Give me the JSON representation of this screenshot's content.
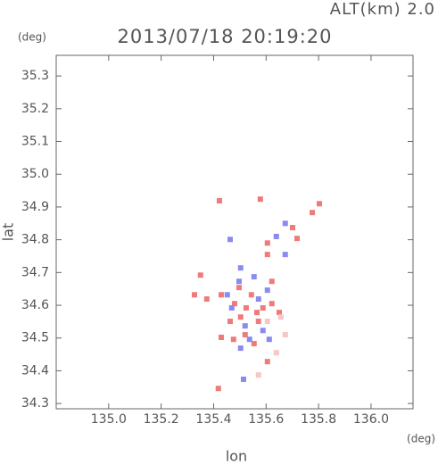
{
  "chart_data": {
    "type": "scatter",
    "title": "2013/07/18 20:19:20",
    "subtitle": "ALT(km) 2.0",
    "x_label": "lon",
    "x_unit": "(deg)",
    "y_label": "lat",
    "y_unit": "(deg)",
    "xlim": [
      134.8,
      136.16
    ],
    "ylim": [
      34.284,
      35.363
    ],
    "xticks": [
      {
        "value": 135.0,
        "label": "135.0"
      },
      135.2,
      135.4,
      135.6,
      135.8,
      {
        "value": 136.0,
        "label": "136.0"
      }
    ],
    "yticks": [
      34.3,
      34.4,
      34.5,
      34.6,
      34.7,
      34.8,
      34.9,
      {
        "value": 35.0,
        "label": "35.0"
      },
      35.1,
      35.2,
      35.3
    ],
    "series": [
      {
        "color": "#f07a7a",
        "x": [
          135.422,
          135.578,
          135.776,
          135.803,
          135.701,
          135.718,
          135.605,
          135.605,
          135.35,
          135.327,
          135.374,
          135.429,
          135.48,
          135.503,
          135.544,
          135.588,
          135.622,
          135.571,
          135.52,
          135.429,
          135.476,
          135.554,
          135.605,
          135.418,
          135.65,
          135.565,
          135.497,
          135.622,
          135.524,
          135.463
        ],
        "y": [
          34.919,
          34.924,
          34.883,
          34.91,
          34.837,
          34.804,
          34.79,
          34.755,
          34.692,
          34.632,
          34.619,
          34.632,
          34.605,
          34.564,
          34.632,
          34.592,
          34.605,
          34.551,
          34.51,
          34.502,
          34.496,
          34.483,
          34.428,
          34.346,
          34.578,
          34.578,
          34.654,
          34.673,
          34.592,
          34.551
        ]
      },
      {
        "color": "#8a8af0",
        "x": [
          135.503,
          135.497,
          135.452,
          135.554,
          135.605,
          135.469,
          135.52,
          135.588,
          135.503,
          135.537,
          135.612,
          135.514,
          135.639,
          135.673,
          135.673,
          135.463,
          135.571
        ],
        "y": [
          34.714,
          34.673,
          34.632,
          34.687,
          34.646,
          34.592,
          34.537,
          34.523,
          34.469,
          34.496,
          34.496,
          34.374,
          34.81,
          34.755,
          34.85,
          34.801,
          34.619
        ]
      },
      {
        "color": "#f7c6c6",
        "x": [
          135.656,
          135.673,
          135.639,
          135.605,
          135.571
        ],
        "y": [
          34.564,
          34.51,
          34.455,
          34.551,
          34.387
        ]
      }
    ]
  }
}
